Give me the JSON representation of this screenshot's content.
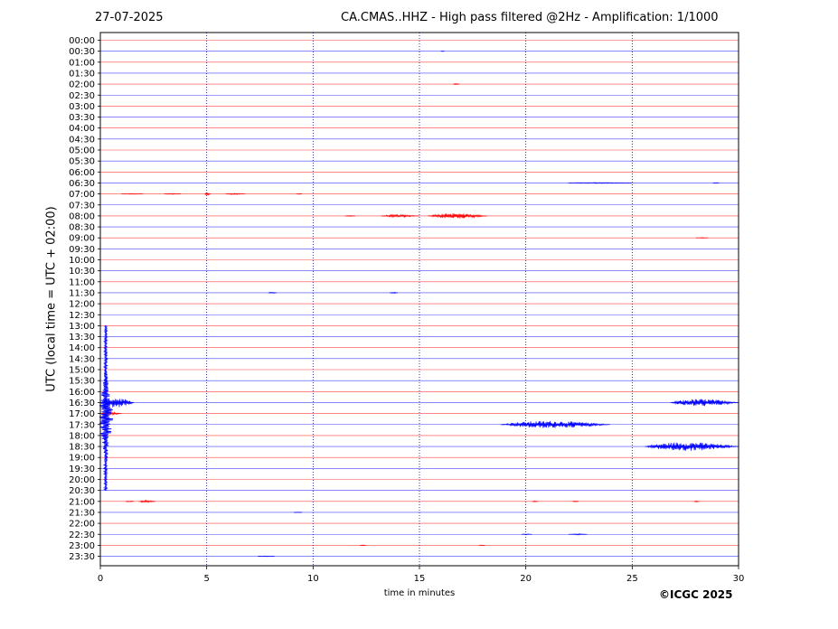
{
  "header": {
    "date": "27-07-2025",
    "title": "CA.CMAS..HHZ - High pass filtered @2Hz - Amplification: 1/1000"
  },
  "footer": {
    "copyright": "©ICGC 2025"
  },
  "chart_data": {
    "type": "line",
    "title": "CA.CMAS..HHZ - High pass filtered @2Hz - Amplification: 1/1000",
    "xlabel": "time in minutes",
    "ylabel": "UTC (local time = UTC + 02:00)",
    "xlim": [
      0,
      30
    ],
    "x_ticks": [
      0,
      5,
      10,
      15,
      20,
      25,
      30
    ],
    "grid": "vertical dotted lines at x ticks",
    "trace_colors": [
      "#ff0000",
      "#0000ff"
    ],
    "row_labels": [
      "00:00",
      "00:30",
      "01:00",
      "01:30",
      "02:00",
      "02:30",
      "03:00",
      "03:30",
      "04:00",
      "04:30",
      "05:00",
      "05:30",
      "06:00",
      "06:30",
      "07:00",
      "07:30",
      "08:00",
      "08:30",
      "09:00",
      "09:30",
      "10:00",
      "10:30",
      "11:00",
      "11:30",
      "12:00",
      "12:30",
      "13:00",
      "13:30",
      "14:00",
      "14:30",
      "15:00",
      "15:30",
      "16:00",
      "16:30",
      "17:00",
      "17:30",
      "18:00",
      "18:30",
      "19:00",
      "19:30",
      "20:00",
      "20:30",
      "21:00",
      "21:30",
      "22:00",
      "22:30",
      "23:00",
      "23:30"
    ],
    "events": [
      {
        "row": "00:30",
        "start": 16.0,
        "end": 16.2,
        "amp": 0.5
      },
      {
        "row": "02:00",
        "start": 16.6,
        "end": 16.9,
        "amp": 1.0
      },
      {
        "row": "06:30",
        "start": 22.0,
        "end": 25.0,
        "amp": 0.7
      },
      {
        "row": "06:30",
        "start": 28.8,
        "end": 29.1,
        "amp": 0.6
      },
      {
        "row": "07:00",
        "start": 1.0,
        "end": 2.0,
        "amp": 0.5
      },
      {
        "row": "07:00",
        "start": 3.0,
        "end": 3.8,
        "amp": 0.6
      },
      {
        "row": "07:00",
        "start": 4.9,
        "end": 5.2,
        "amp": 1.6
      },
      {
        "row": "07:00",
        "start": 5.9,
        "end": 6.8,
        "amp": 0.8
      },
      {
        "row": "07:00",
        "start": 9.2,
        "end": 9.5,
        "amp": 0.6
      },
      {
        "row": "08:00",
        "start": 11.5,
        "end": 12.0,
        "amp": 0.6
      },
      {
        "row": "08:00",
        "start": 13.2,
        "end": 15.0,
        "amp": 1.6
      },
      {
        "row": "08:00",
        "start": 15.4,
        "end": 18.2,
        "amp": 3.6
      },
      {
        "row": "09:00",
        "start": 28.0,
        "end": 28.6,
        "amp": 0.6
      },
      {
        "row": "11:30",
        "start": 7.9,
        "end": 8.3,
        "amp": 0.8
      },
      {
        "row": "11:30",
        "start": 13.6,
        "end": 14.0,
        "amp": 0.8
      },
      {
        "row": "16:30",
        "start": 0.0,
        "end": 1.6,
        "amp": 7.0
      },
      {
        "row": "16:30",
        "start": 26.8,
        "end": 30.0,
        "amp": 5.0
      },
      {
        "row": "17:00",
        "start": 0.0,
        "end": 1.0,
        "amp": 2.0
      },
      {
        "row": "17:30",
        "start": 18.8,
        "end": 24.0,
        "amp": 5.0
      },
      {
        "row": "18:30",
        "start": 25.6,
        "end": 30.0,
        "amp": 6.0
      },
      {
        "row": "21:00",
        "start": 1.2,
        "end": 1.6,
        "amp": 1.0
      },
      {
        "row": "21:00",
        "start": 1.8,
        "end": 2.6,
        "amp": 1.6
      },
      {
        "row": "21:00",
        "start": 20.3,
        "end": 20.6,
        "amp": 0.8
      },
      {
        "row": "21:00",
        "start": 22.2,
        "end": 22.5,
        "amp": 0.8
      },
      {
        "row": "21:00",
        "start": 27.9,
        "end": 28.2,
        "amp": 0.8
      },
      {
        "row": "21:30",
        "start": 9.1,
        "end": 9.5,
        "amp": 0.6
      },
      {
        "row": "22:30",
        "start": 19.8,
        "end": 20.3,
        "amp": 0.8
      },
      {
        "row": "22:30",
        "start": 22.0,
        "end": 22.9,
        "amp": 0.9
      },
      {
        "row": "23:00",
        "start": 12.2,
        "end": 12.5,
        "amp": 0.5
      },
      {
        "row": "23:00",
        "start": 17.8,
        "end": 18.1,
        "amp": 0.5
      },
      {
        "row": "23:30",
        "start": 7.4,
        "end": 8.2,
        "amp": 0.5
      }
    ],
    "teleseism": {
      "start_row": "13:00",
      "row_span": 15,
      "x": 0.25,
      "max_amp_rows": 4.5
    }
  }
}
